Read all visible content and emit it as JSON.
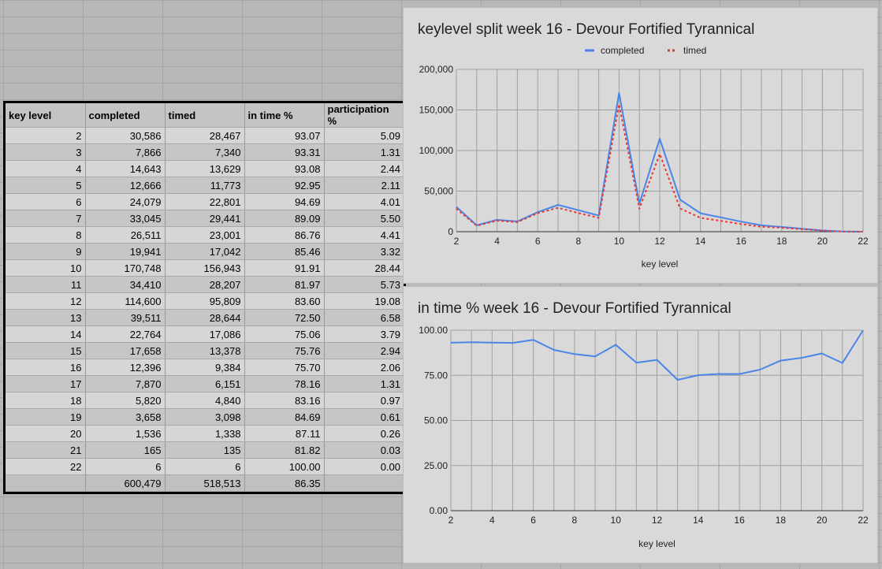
{
  "table": {
    "headers": [
      "key level",
      "completed",
      "timed",
      "in time %",
      "participation %"
    ],
    "rows": [
      [
        "2",
        "30,586",
        "28,467",
        "93.07",
        "5.09"
      ],
      [
        "3",
        "7,866",
        "7,340",
        "93.31",
        "1.31"
      ],
      [
        "4",
        "14,643",
        "13,629",
        "93.08",
        "2.44"
      ],
      [
        "5",
        "12,666",
        "11,773",
        "92.95",
        "2.11"
      ],
      [
        "6",
        "24,079",
        "22,801",
        "94.69",
        "4.01"
      ],
      [
        "7",
        "33,045",
        "29,441",
        "89.09",
        "5.50"
      ],
      [
        "8",
        "26,511",
        "23,001",
        "86.76",
        "4.41"
      ],
      [
        "9",
        "19,941",
        "17,042",
        "85.46",
        "3.32"
      ],
      [
        "10",
        "170,748",
        "156,943",
        "91.91",
        "28.44"
      ],
      [
        "11",
        "34,410",
        "28,207",
        "81.97",
        "5.73"
      ],
      [
        "12",
        "114,600",
        "95,809",
        "83.60",
        "19.08"
      ],
      [
        "13",
        "39,511",
        "28,644",
        "72.50",
        "6.58"
      ],
      [
        "14",
        "22,764",
        "17,086",
        "75.06",
        "3.79"
      ],
      [
        "15",
        "17,658",
        "13,378",
        "75.76",
        "2.94"
      ],
      [
        "16",
        "12,396",
        "9,384",
        "75.70",
        "2.06"
      ],
      [
        "17",
        "7,870",
        "6,151",
        "78.16",
        "1.31"
      ],
      [
        "18",
        "5,820",
        "4,840",
        "83.16",
        "0.97"
      ],
      [
        "19",
        "3,658",
        "3,098",
        "84.69",
        "0.61"
      ],
      [
        "20",
        "1,536",
        "1,338",
        "87.11",
        "0.26"
      ],
      [
        "21",
        "165",
        "135",
        "81.82",
        "0.03"
      ],
      [
        "22",
        "6",
        "6",
        "100.00",
        "0.00"
      ]
    ],
    "totals": [
      "",
      "600,479",
      "518,513",
      "86.35",
      ""
    ]
  },
  "chart_data": [
    {
      "type": "line",
      "title": "keylevel split week 16 - Devour Fortified Tyrannical",
      "xlabel": "key level",
      "ylabel": "",
      "x": [
        2,
        3,
        4,
        5,
        6,
        7,
        8,
        9,
        10,
        11,
        12,
        13,
        14,
        15,
        16,
        17,
        18,
        19,
        20,
        21,
        22
      ],
      "xlim": [
        2,
        22
      ],
      "xticks": [
        2,
        4,
        6,
        8,
        10,
        12,
        14,
        16,
        18,
        20,
        22
      ],
      "ylim": [
        0,
        200000
      ],
      "yticks": [
        0,
        50000,
        100000,
        150000,
        200000
      ],
      "ytick_labels": [
        "0",
        "50,000",
        "100,000",
        "150,000",
        "200,000"
      ],
      "grid": true,
      "legend": "top-center",
      "series": [
        {
          "name": "completed",
          "color": "#4a86e8",
          "style": "solid",
          "values": [
            30586,
            7866,
            14643,
            12666,
            24079,
            33045,
            26511,
            19941,
            170748,
            34410,
            114600,
            39511,
            22764,
            17658,
            12396,
            7870,
            5820,
            3658,
            1536,
            165,
            6
          ]
        },
        {
          "name": "timed",
          "color": "#e53935",
          "style": "dotted",
          "values": [
            28467,
            7340,
            13629,
            11773,
            22801,
            29441,
            23001,
            17042,
            156943,
            28207,
            95809,
            28644,
            17086,
            13378,
            9384,
            6151,
            4840,
            3098,
            1338,
            135,
            6
          ]
        }
      ]
    },
    {
      "type": "line",
      "title": "in time % week 16 - Devour Fortified Tyrannical",
      "xlabel": "key level",
      "ylabel": "",
      "x": [
        2,
        3,
        4,
        5,
        6,
        7,
        8,
        9,
        10,
        11,
        12,
        13,
        14,
        15,
        16,
        17,
        18,
        19,
        20,
        21,
        22
      ],
      "xlim": [
        2,
        22
      ],
      "xticks": [
        2,
        4,
        6,
        8,
        10,
        12,
        14,
        16,
        18,
        20,
        22
      ],
      "ylim": [
        0,
        100
      ],
      "yticks": [
        0,
        25,
        50,
        75,
        100
      ],
      "ytick_labels": [
        "0.00",
        "25.00",
        "50.00",
        "75.00",
        "100.00"
      ],
      "grid": true,
      "legend": "none",
      "series": [
        {
          "name": "",
          "color": "#4a86e8",
          "style": "solid",
          "values": [
            93.07,
            93.31,
            93.08,
            92.95,
            94.69,
            89.09,
            86.76,
            85.46,
            91.91,
            81.97,
            83.6,
            72.5,
            75.06,
            75.76,
            75.7,
            78.16,
            83.16,
            84.69,
            87.11,
            81.82,
            100.0
          ]
        }
      ]
    }
  ]
}
